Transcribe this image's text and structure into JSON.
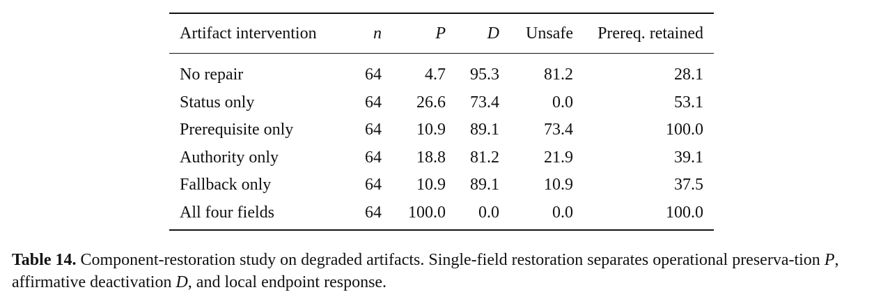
{
  "table": {
    "headers": {
      "intervention": "Artifact intervention",
      "n": "n",
      "p": "P",
      "d": "D",
      "unsafe": "Unsafe",
      "prereq": "Prereq. retained"
    },
    "rows": [
      {
        "intervention": "No repair",
        "n": "64",
        "p": "4.7",
        "d": "95.3",
        "unsafe": "81.2",
        "prereq": "28.1"
      },
      {
        "intervention": "Status only",
        "n": "64",
        "p": "26.6",
        "d": "73.4",
        "unsafe": "0.0",
        "prereq": "53.1"
      },
      {
        "intervention": "Prerequisite only",
        "n": "64",
        "p": "10.9",
        "d": "89.1",
        "unsafe": "73.4",
        "prereq": "100.0"
      },
      {
        "intervention": "Authority only",
        "n": "64",
        "p": "18.8",
        "d": "81.2",
        "unsafe": "21.9",
        "prereq": "39.1"
      },
      {
        "intervention": "Fallback only",
        "n": "64",
        "p": "10.9",
        "d": "89.1",
        "unsafe": "10.9",
        "prereq": "37.5"
      },
      {
        "intervention": "All four fields",
        "n": "64",
        "p": "100.0",
        "d": "0.0",
        "unsafe": "0.0",
        "prereq": "100.0"
      }
    ]
  },
  "caption": {
    "label": "Table 14.",
    "text_1": " Component-restoration study on degraded artifacts. Single-field restoration separates operational preserva-tion ",
    "var_p": "P",
    "text_2": ", affirmative deactivation ",
    "var_d": "D",
    "text_3": ", and local endpoint response."
  }
}
